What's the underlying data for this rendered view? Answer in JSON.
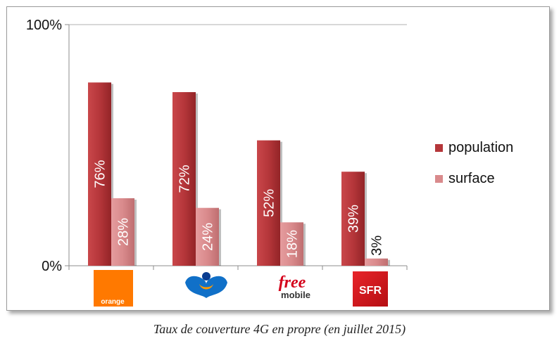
{
  "caption": "Taux de couverture 4G en propre (en juillet 2015)",
  "colors": {
    "population": "#b5363a",
    "surface": "#d98a8c",
    "axis": "#8c8c8c",
    "grid": "#b0b0b0"
  },
  "chart_data": {
    "type": "bar",
    "categories": [
      "orange",
      "bouygues-telecom",
      "free mobile",
      "SFR"
    ],
    "series": [
      {
        "name": "population",
        "values": [
          76,
          72,
          52,
          39
        ],
        "labels": [
          "76%",
          "72%",
          "52%",
          "39%"
        ]
      },
      {
        "name": "surface",
        "values": [
          28,
          24,
          18,
          3
        ],
        "labels": [
          "28%",
          "24%",
          "18%",
          "3%"
        ]
      }
    ],
    "ylim": [
      0,
      100
    ],
    "yticks": [
      "0%",
      "100%"
    ],
    "grid": true,
    "legend": "right",
    "title": "",
    "xlabel": "",
    "ylabel": ""
  },
  "logos": {
    "orange": {
      "text": "orange"
    },
    "free": {
      "text1": "free",
      "text2": "mobile"
    },
    "sfr": {
      "text": "SFR"
    }
  }
}
